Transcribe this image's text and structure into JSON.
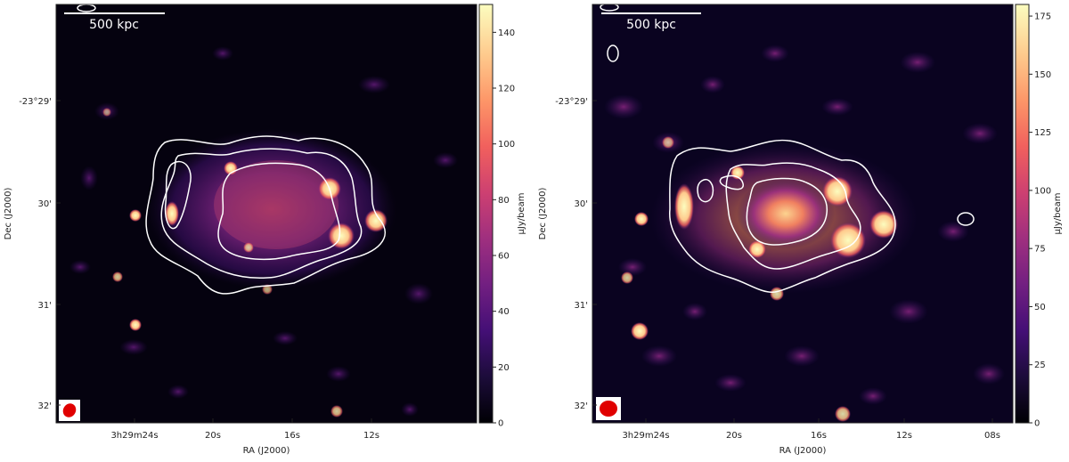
{
  "panels": [
    {
      "scalebar_label": "500 kpc",
      "dec_axis_label": "Dec (J2000)",
      "ra_axis_label": "RA (J2000)",
      "dec_ticks": [
        "-23°29'",
        "30'",
        "31'",
        "32'"
      ],
      "ra_ticks": [
        "3h29m24s",
        "20s",
        "16s",
        "12s"
      ],
      "colorbar_label": "μJy/beam",
      "colorbar_ticks": [
        "0",
        "20",
        "40",
        "60",
        "80",
        "100",
        "120",
        "140"
      ],
      "colorbar_max": 150,
      "colormap": [
        "#000004",
        "#1c0c3a",
        "#440f76",
        "#721f81",
        "#9f2f7f",
        "#cd4071",
        "#f1605d",
        "#fd9668",
        "#feca8d",
        "#fcfdbf"
      ]
    },
    {
      "scalebar_label": "500 kpc",
      "dec_axis_label": "Dec (J2000)",
      "ra_axis_label": "RA (J2000)",
      "dec_ticks": [
        "-23°29'",
        "30'",
        "31'",
        "32'"
      ],
      "ra_ticks": [
        "3h29m24s",
        "20s",
        "16s",
        "12s",
        "08s"
      ],
      "colorbar_label": "μJy/beam",
      "colorbar_ticks": [
        "0",
        "25",
        "50",
        "75",
        "100",
        "125",
        "150",
        "175"
      ],
      "colorbar_max": 180,
      "colormap": [
        "#000004",
        "#1c0c3a",
        "#440f76",
        "#721f81",
        "#9f2f7f",
        "#cd4071",
        "#f1605d",
        "#fd9668",
        "#feca8d",
        "#fcfdbf"
      ]
    }
  ]
}
